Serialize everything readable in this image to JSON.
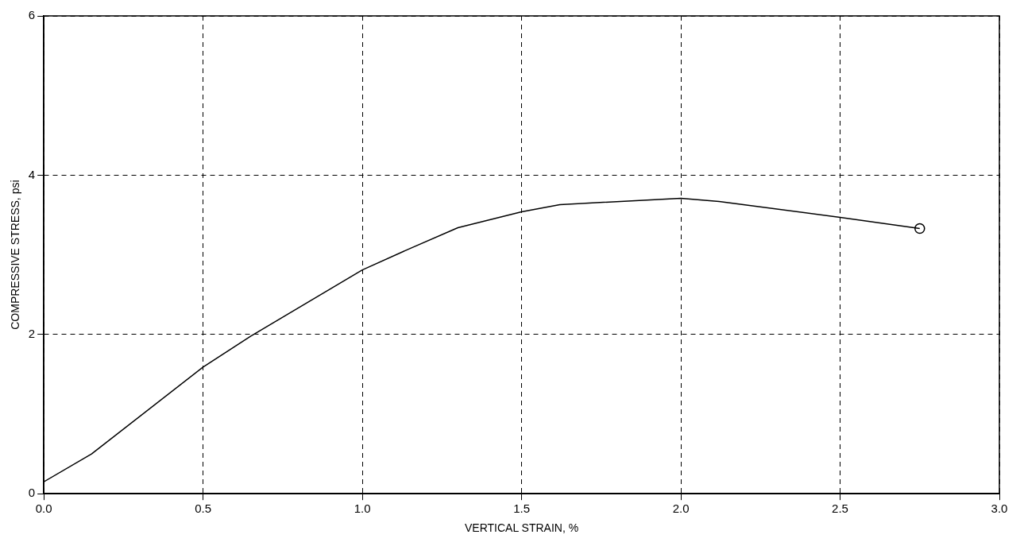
{
  "chart_data": {
    "type": "line",
    "xlabel": "VERTICAL STRAIN, %",
    "ylabel": "COMPRESSIVE STRESS, psi",
    "xlim": [
      0,
      3.0
    ],
    "xticks": [
      {
        "value": 0,
        "label": "0.0"
      },
      0.5,
      {
        "value": 1,
        "label": "1.0"
      },
      1.5,
      {
        "value": 2,
        "label": "2.0"
      },
      2.5,
      {
        "value": 3,
        "label": "3.0"
      }
    ],
    "ylim": [
      0,
      6
    ],
    "yticks": [
      0,
      2,
      4,
      6
    ],
    "grid": true,
    "legend": false,
    "series": [
      {
        "color": "#000000",
        "marker": "none",
        "x": [
          0,
          0.15,
          0.5,
          0.65,
          1.0,
          1.15,
          1.3,
          1.5,
          1.62,
          2.0,
          2.12,
          2.5,
          2.75
        ],
        "values": [
          0.15,
          0.5,
          1.59,
          1.98,
          2.81,
          3.08,
          3.34,
          3.54,
          3.63,
          3.71,
          3.67,
          3.47,
          3.33
        ]
      },
      {
        "type": "scatter",
        "color": "#000000",
        "marker": "circle",
        "x": [
          2.75
        ],
        "values": [
          3.33
        ]
      }
    ]
  }
}
